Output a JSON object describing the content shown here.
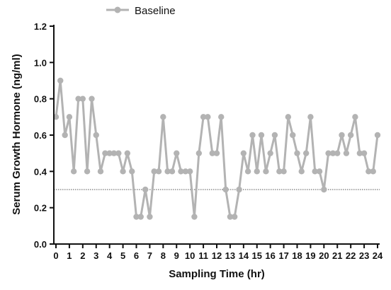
{
  "chart_data": {
    "type": "line",
    "xlabel": "Sampling Time (hr)",
    "ylabel": "Serum Growth Hormone (ng/ml)",
    "xlim": [
      0,
      24
    ],
    "ylim": [
      0,
      1.2
    ],
    "x_ticks": [
      0,
      1,
      2,
      3,
      4,
      5,
      6,
      7,
      8,
      9,
      10,
      11,
      12,
      13,
      14,
      15,
      16,
      17,
      18,
      19,
      20,
      21,
      22,
      23,
      24
    ],
    "y_ticks": [
      0.0,
      0.2,
      0.4,
      0.6,
      0.8,
      1.0,
      1.2
    ],
    "y_tick_labels": [
      "0.0",
      "0.2",
      "0.4",
      "0.6",
      "0.8",
      "1.0",
      "1.2"
    ],
    "x_tick_labels": [
      "0",
      "1",
      "2",
      "3",
      "4",
      "5",
      "6",
      "7",
      "8",
      "9",
      "10",
      "11",
      "12",
      "13",
      "14",
      "15",
      "16",
      "17",
      "18",
      "19",
      "20",
      "21",
      "22",
      "23",
      "24"
    ],
    "reference_line": 0.3,
    "series": [
      {
        "name": "Baseline",
        "color": "#b3b3b3",
        "x": [
          0,
          0.33,
          0.67,
          1,
          1.33,
          1.67,
          2,
          2.33,
          2.67,
          3,
          3.33,
          3.67,
          4,
          4.33,
          4.67,
          5,
          5.33,
          5.67,
          6,
          6.33,
          6.67,
          7,
          7.33,
          7.67,
          8,
          8.33,
          8.67,
          9,
          9.33,
          9.67,
          10,
          10.33,
          10.67,
          11,
          11.33,
          11.67,
          12,
          12.33,
          12.67,
          13,
          13.33,
          13.67,
          14,
          14.33,
          14.67,
          15,
          15.33,
          15.67,
          16,
          16.33,
          16.67,
          17,
          17.33,
          17.67,
          18,
          18.33,
          18.67,
          19,
          19.33,
          19.67,
          20,
          20.33,
          20.67,
          21,
          21.33,
          21.67,
          22,
          22.33,
          22.67,
          23,
          23.33,
          23.67,
          24
        ],
        "values": [
          0.7,
          0.9,
          0.6,
          0.7,
          0.4,
          0.8,
          0.8,
          0.4,
          0.8,
          0.6,
          0.4,
          0.5,
          0.5,
          0.5,
          0.5,
          0.4,
          0.5,
          0.4,
          0.15,
          0.15,
          0.3,
          0.15,
          0.4,
          0.4,
          0.7,
          0.4,
          0.4,
          0.5,
          0.4,
          0.4,
          0.4,
          0.15,
          0.5,
          0.7,
          0.7,
          0.5,
          0.5,
          0.7,
          0.3,
          0.15,
          0.15,
          0.3,
          0.5,
          0.4,
          0.6,
          0.4,
          0.6,
          0.4,
          0.5,
          0.6,
          0.4,
          0.4,
          0.7,
          0.6,
          0.5,
          0.4,
          0.5,
          0.7,
          0.4,
          0.4,
          0.3,
          0.5,
          0.5,
          0.5,
          0.6,
          0.5,
          0.6,
          0.7,
          0.5,
          0.5,
          0.4,
          0.4,
          0.6
        ]
      }
    ],
    "legend_position": "top-left",
    "grid": false
  }
}
